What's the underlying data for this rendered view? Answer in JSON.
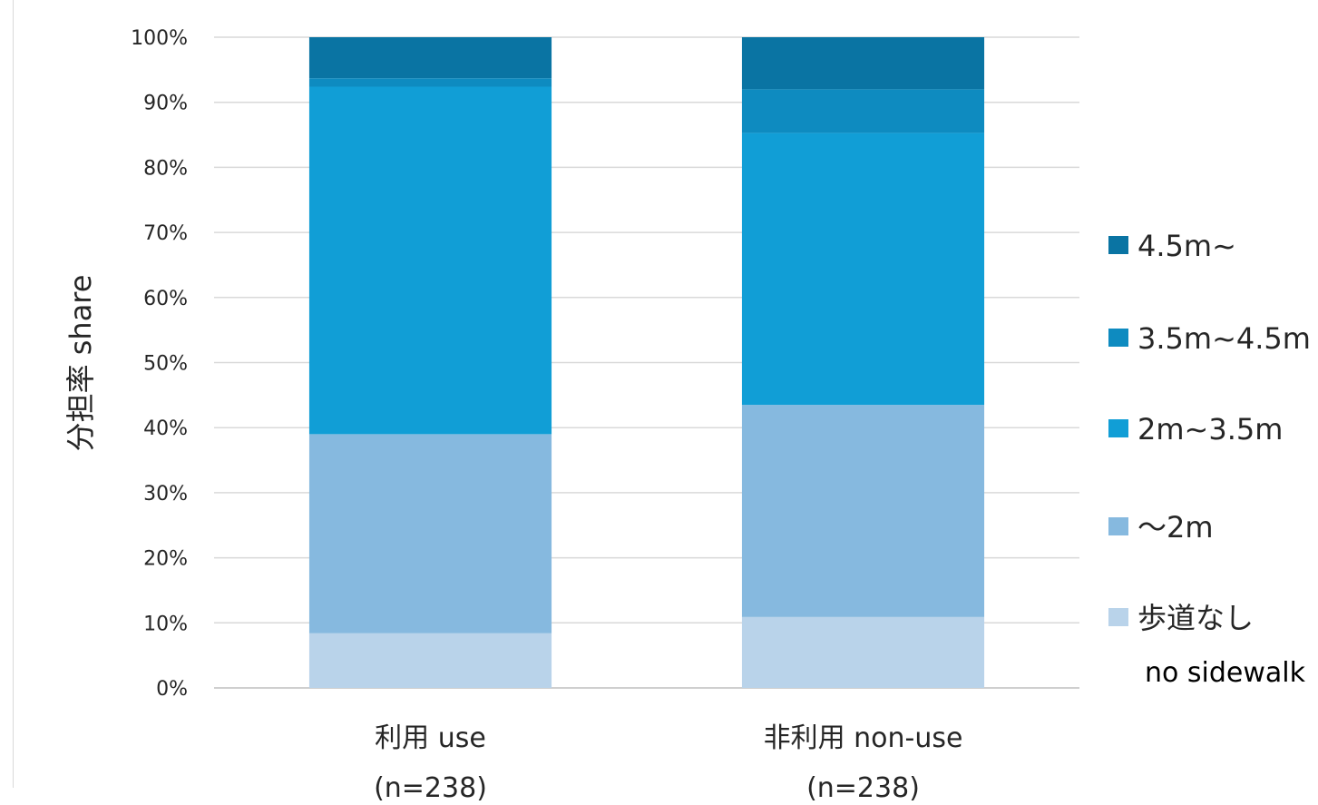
{
  "chart_data": {
    "type": "bar",
    "stacked": true,
    "ylabel": "分担率 share",
    "ylim": [
      0,
      100
    ],
    "yticks": [
      "0%",
      "10%",
      "20%",
      "30%",
      "40%",
      "50%",
      "60%",
      "70%",
      "80%",
      "90%",
      "100%"
    ],
    "categories": [
      "利用 use",
      "非利用 non-use"
    ],
    "category_notes": [
      "(n=238)",
      "(n=238)"
    ],
    "grid": true,
    "legend_position": "right",
    "legend_order": [
      "4.5m~",
      "3.5m~4.5m",
      "2m~3.5m",
      "～2m",
      "歩道なし no sidewalk"
    ],
    "series": [
      {
        "name": "歩道なし",
        "name_line2": "no sidewalk",
        "values": [
          8.4,
          10.9
        ],
        "color": "#b9d3ea"
      },
      {
        "name": "～2m",
        "values": [
          30.6,
          32.6
        ],
        "color": "#86b9df"
      },
      {
        "name": "2m~3.5m",
        "values": [
          53.4,
          41.8
        ],
        "color": "#119ed6"
      },
      {
        "name": "3.5m~4.5m",
        "values": [
          1.3,
          6.7
        ],
        "color": "#0e8bc0"
      },
      {
        "name": "4.5m~",
        "values": [
          6.3,
          8.0
        ],
        "color": "#0a74a3"
      }
    ]
  }
}
